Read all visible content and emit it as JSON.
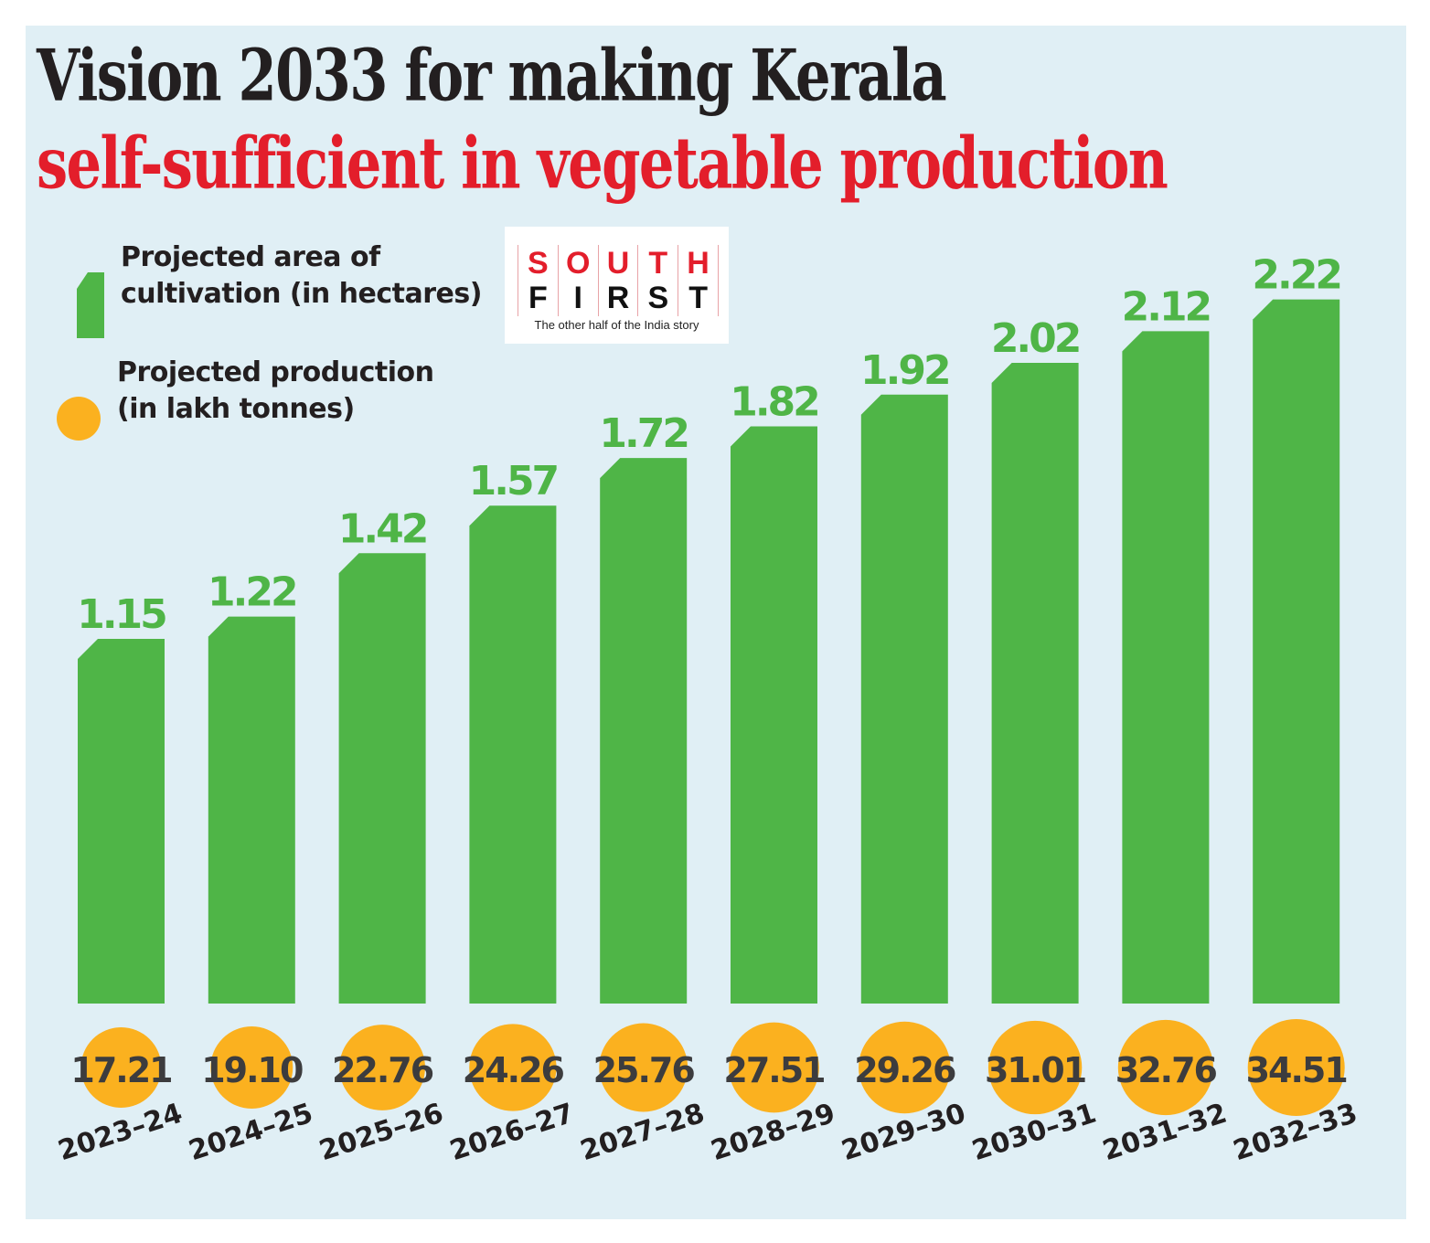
{
  "title": {
    "line1": "Vision 2033 for making Kerala",
    "line2": "self-sufficient in vegetable production"
  },
  "legend": {
    "area_line1": "Projected area of",
    "area_line2": "cultivation (in hectares)",
    "production_line1": "Projected production",
    "production_line2": "(in lakh tonnes)"
  },
  "logo": {
    "row1": [
      "S",
      "O",
      "U",
      "T",
      "H"
    ],
    "row2": [
      "F",
      "I",
      "R",
      "S",
      "T"
    ],
    "tagline": "The other half of the India story"
  },
  "colors": {
    "background": "#e0eff5",
    "bar": "#4fb547",
    "circle": "#fbb11f",
    "title_dark": "#231f20",
    "title_red": "#e31e2b"
  },
  "chart_data": {
    "type": "bar",
    "title": "Vision 2033 for making Kerala self-sufficient in vegetable production",
    "xlabel": "",
    "ylabel": "",
    "grid": false,
    "legend_position": "top-left",
    "categories": [
      "2023-24",
      "2024-25",
      "2025-26",
      "2026-27",
      "2027-28",
      "2028-29",
      "2029-30",
      "2030-31",
      "2031-32",
      "2032-33"
    ],
    "series": [
      {
        "name": "Projected area of cultivation (in hectares)",
        "marker": "bar",
        "values": [
          1.15,
          1.22,
          1.42,
          1.57,
          1.72,
          1.82,
          1.92,
          2.02,
          2.12,
          2.22
        ],
        "labels": [
          "1.15",
          "1.22",
          "1.42",
          "1.57",
          "1.72",
          "1.82",
          "1.92",
          "2.02",
          "2.12",
          "2.22"
        ]
      },
      {
        "name": "Projected production (in lakh tonnes)",
        "marker": "circle",
        "values": [
          17.21,
          19.1,
          22.76,
          24.26,
          25.76,
          27.51,
          29.26,
          31.01,
          32.76,
          34.51
        ],
        "labels": [
          "17.21",
          "19.10",
          "22.76",
          "24.26",
          "25.76",
          "27.51",
          "29.26",
          "31.01",
          "32.76",
          "34.51"
        ]
      }
    ],
    "ylim": [
      0,
      2.22
    ]
  }
}
